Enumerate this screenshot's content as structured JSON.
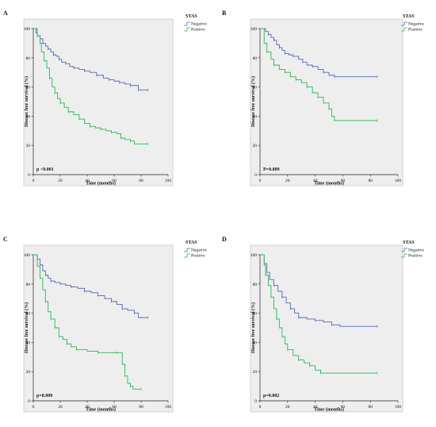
{
  "colors": {
    "negative": "#5566bb",
    "positive": "#22bb55",
    "plot_bg": "#eeeeee",
    "axis": "#222222"
  },
  "chart_data": [
    {
      "type": "line",
      "panel_label": "A",
      "legend_title": "STAS",
      "xlabel": "Time (months)",
      "ylabel": "Disease free survival (%)",
      "xlim": [
        0,
        100
      ],
      "ylim": [
        0,
        100
      ],
      "xticks": [
        "0",
        "20",
        "40",
        "60",
        "80",
        "100"
      ],
      "yticks": [
        "0",
        "20",
        "40",
        "60",
        "80",
        "100"
      ],
      "p_text": "p <0.001",
      "series": [
        {
          "name": "Negative",
          "color_key": "negative",
          "x": [
            0,
            2,
            3,
            5,
            7,
            9,
            11,
            13,
            15,
            17,
            19,
            21,
            24,
            27,
            30,
            34,
            38,
            42,
            47,
            52,
            56,
            60,
            64,
            68,
            72,
            76,
            78,
            85
          ],
          "y": [
            100,
            97,
            95,
            93,
            90,
            88,
            86,
            84,
            82,
            81,
            79,
            77,
            76,
            74,
            73,
            72,
            71,
            70,
            68,
            66,
            65,
            64,
            63,
            62,
            61,
            61,
            58,
            58
          ]
        },
        {
          "name": "Positive",
          "color_key": "positive",
          "x": [
            0,
            3,
            5,
            6,
            8,
            10,
            12,
            14,
            16,
            18,
            20,
            23,
            26,
            30,
            34,
            38,
            42,
            46,
            50,
            54,
            58,
            62,
            65,
            68,
            72,
            75,
            85
          ],
          "y": [
            100,
            95,
            90,
            84,
            78,
            73,
            66,
            60,
            56,
            52,
            49,
            46,
            43,
            41,
            38,
            35,
            33,
            32,
            31,
            30,
            29,
            28,
            25,
            24,
            23,
            21,
            21
          ]
        }
      ]
    },
    {
      "type": "line",
      "panel_label": "B",
      "legend_title": "STAS",
      "xlabel": "Time (months)",
      "ylabel": "Disease free survival (%)",
      "xlim": [
        0,
        100
      ],
      "ylim": [
        0,
        100
      ],
      "xticks": [
        "0",
        "20",
        "40",
        "60",
        "80",
        "100"
      ],
      "yticks": [
        "0",
        "20",
        "40",
        "60",
        "80",
        "100"
      ],
      "p_text": "P=0.009",
      "series": [
        {
          "name": "Negative",
          "color_key": "negative",
          "x": [
            0,
            4,
            6,
            8,
            10,
            12,
            14,
            16,
            18,
            21,
            24,
            28,
            31,
            34,
            38,
            42,
            46,
            50,
            54,
            58,
            85
          ],
          "y": [
            100,
            98,
            96,
            94,
            92,
            89,
            87,
            85,
            83,
            82,
            81,
            79,
            77,
            75,
            74,
            72,
            70,
            68,
            67,
            67,
            67
          ]
        },
        {
          "name": "Positive",
          "color_key": "positive",
          "x": [
            0,
            3,
            5,
            8,
            10,
            14,
            18,
            22,
            26,
            30,
            34,
            38,
            42,
            46,
            50,
            52,
            54,
            85
          ],
          "y": [
            100,
            90,
            84,
            79,
            75,
            72,
            70,
            67,
            65,
            63,
            60,
            56,
            53,
            49,
            45,
            40,
            37,
            37
          ]
        }
      ]
    },
    {
      "type": "line",
      "panel_label": "C",
      "legend_title": "STAS",
      "xlabel": "Time (months)",
      "ylabel": "Disease free survival (%)",
      "xlim": [
        0,
        100
      ],
      "ylim": [
        0,
        100
      ],
      "xticks": [
        "0",
        "20",
        "40",
        "60",
        "80",
        "100"
      ],
      "yticks": [
        "0",
        "20",
        "40",
        "60",
        "80",
        "100"
      ],
      "p_text": "p=0.000",
      "series": [
        {
          "name": "Negative",
          "color_key": "negative",
          "x": [
            0,
            3,
            5,
            7,
            9,
            11,
            13,
            16,
            20,
            24,
            28,
            33,
            38,
            43,
            48,
            53,
            58,
            62,
            66,
            70,
            75,
            78,
            85
          ],
          "y": [
            100,
            97,
            93,
            89,
            86,
            84,
            82,
            81,
            80,
            79,
            78,
            77,
            75,
            74,
            72,
            70,
            68,
            66,
            63,
            62,
            60,
            57,
            57
          ]
        },
        {
          "name": "Positive",
          "color_key": "positive",
          "x": [
            0,
            3,
            5,
            7,
            9,
            11,
            13,
            16,
            19,
            22,
            25,
            28,
            32,
            40,
            48,
            56,
            62,
            66,
            68,
            70,
            72,
            74,
            80
          ],
          "y": [
            100,
            92,
            84,
            76,
            68,
            61,
            56,
            50,
            44,
            42,
            39,
            37,
            35,
            34,
            33,
            33,
            33,
            25,
            17,
            12,
            10,
            8,
            8
          ]
        }
      ]
    },
    {
      "type": "line",
      "panel_label": "D",
      "legend_title": "STAS",
      "xlabel": "Time (months)",
      "ylabel": "Disease free survival (%)",
      "xlim": [
        0,
        100
      ],
      "ylim": [
        0,
        100
      ],
      "xticks": [
        "0",
        "20",
        "40",
        "60",
        "80",
        "100"
      ],
      "yticks": [
        "0",
        "20",
        "40",
        "60",
        "80",
        "100"
      ],
      "p_text": "p=0.002",
      "series": [
        {
          "name": "Negative",
          "color_key": "negative",
          "x": [
            0,
            3,
            5,
            7,
            10,
            13,
            16,
            19,
            22,
            25,
            28,
            34,
            40,
            46,
            52,
            58,
            85
          ],
          "y": [
            100,
            94,
            88,
            83,
            79,
            75,
            71,
            67,
            63,
            60,
            57,
            56,
            55,
            54,
            52,
            51,
            51
          ]
        },
        {
          "name": "Positive",
          "color_key": "positive",
          "x": [
            0,
            3,
            4,
            6,
            8,
            10,
            12,
            14,
            16,
            18,
            20,
            24,
            28,
            32,
            36,
            40,
            44,
            85
          ],
          "y": [
            100,
            93,
            86,
            79,
            71,
            63,
            56,
            50,
            44,
            39,
            35,
            31,
            28,
            26,
            24,
            21,
            19,
            19
          ]
        }
      ]
    }
  ]
}
